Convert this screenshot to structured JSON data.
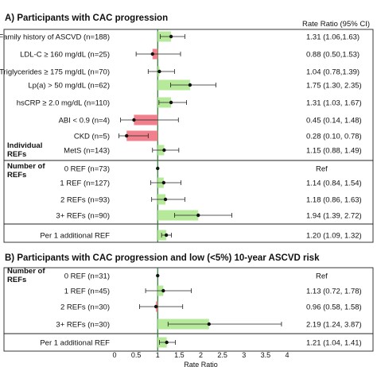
{
  "panel_a_title": "A) Participants with CAC progression",
  "panel_b_title": "B) Participants with CAC progression and low (<5%) 10-year ASCVD risk",
  "rate_ratio_header": "Rate Ratio (95% CI)",
  "colors": {
    "increase": "#b6ea9a",
    "decrease": "#f0808c",
    "reference_line": "#1f7a2a"
  },
  "chart_data": [
    {
      "type": "forest",
      "title": "A) Participants with CAC progression",
      "xlabel": "",
      "xlim": [
        0,
        4
      ],
      "xticks": [],
      "reference_value": 1,
      "groups": [
        {
          "label": "Individual REFs",
          "rows": [
            {
              "label": "Family history of ASCVD (n=188)",
              "rr": 1.31,
              "lo": 1.06,
              "hi": 1.63,
              "text": "1.31 (1.06,1.63)"
            },
            {
              "label": "LDL-C ≥ 160 mg/dL (n=25)",
              "rr": 0.88,
              "lo": 0.5,
              "hi": 1.53,
              "text": "0.88 (0.50,1.53)"
            },
            {
              "label": "Triglycerides ≥ 175 mg/dL (n=70)",
              "rr": 1.04,
              "lo": 0.78,
              "hi": 1.39,
              "text": "1.04 (0.78,1.39)"
            },
            {
              "label": "Lp(a) > 50 mg/dL (n=62)",
              "rr": 1.75,
              "lo": 1.3,
              "hi": 2.35,
              "text": "1.75 (1.30, 2.35)"
            },
            {
              "label": "hsCRP ≥ 2.0 mg/dL (n=110)",
              "rr": 1.31,
              "lo": 1.03,
              "hi": 1.67,
              "text": "1.31 (1.03, 1.67)"
            },
            {
              "label": "ABI < 0.9 (n=4)",
              "rr": 0.45,
              "lo": 0.14,
              "hi": 1.48,
              "text": "0.45 (0.14, 1.48)"
            },
            {
              "label": "CKD (n=5)",
              "rr": 0.28,
              "lo": 0.1,
              "hi": 0.78,
              "text": "0.28 (0.10, 0.78)"
            },
            {
              "label": "MetS (n=143)",
              "rr": 1.15,
              "lo": 0.88,
              "hi": 1.49,
              "text": "1.15 (0.88, 1.49)"
            }
          ]
        },
        {
          "label": "Number of REFs",
          "rows": [
            {
              "label": "0 REF (n=73)",
              "rr": 1.0,
              "lo": null,
              "hi": null,
              "text": "Ref"
            },
            {
              "label": "1 REF (n=127)",
              "rr": 1.14,
              "lo": 0.84,
              "hi": 1.54,
              "text": "1.14 (0.84, 1.54)"
            },
            {
              "label": "2 REFs (n=93)",
              "rr": 1.18,
              "lo": 0.86,
              "hi": 1.63,
              "text": "1.18 (0.86, 1.63)"
            },
            {
              "label": "3+ REFs (n=90)",
              "rr": 1.94,
              "lo": 1.39,
              "hi": 2.72,
              "text": "1.94 (1.39, 2.72)"
            }
          ]
        },
        {
          "label": "",
          "rows": [
            {
              "label": "Per 1 additional REF",
              "rr": 1.2,
              "lo": 1.09,
              "hi": 1.32,
              "text": "1.20 (1.09, 1.32)"
            }
          ]
        }
      ]
    },
    {
      "type": "forest",
      "title": "B) Participants with CAC progression and low (<5%) 10-year ASCVD risk",
      "xlabel": "Rate Ratio",
      "xlim": [
        0,
        4
      ],
      "xticks": [
        0,
        0.5,
        1,
        1.5,
        2,
        2.5,
        3,
        3.5,
        4
      ],
      "reference_value": 1,
      "groups": [
        {
          "label": "Number of REFs",
          "rows": [
            {
              "label": "0 REF (n=31)",
              "rr": 1.0,
              "lo": null,
              "hi": null,
              "text": "Ref"
            },
            {
              "label": "1 REF (n=45)",
              "rr": 1.13,
              "lo": 0.72,
              "hi": 1.78,
              "text": "1.13 (0.72, 1.78)"
            },
            {
              "label": "2 REFs (n=30)",
              "rr": 0.96,
              "lo": 0.58,
              "hi": 1.58,
              "text": "0.96 (0.58, 1.58)"
            },
            {
              "label": "3+ REFs (n=30)",
              "rr": 2.19,
              "lo": 1.24,
              "hi": 3.87,
              "text": "2.19 (1.24, 3.87)"
            }
          ]
        },
        {
          "label": "",
          "rows": [
            {
              "label": "Per 1 additional REF",
              "rr": 1.21,
              "lo": 1.04,
              "hi": 1.41,
              "text": "1.21 (1.04, 1.41)"
            }
          ]
        }
      ]
    }
  ]
}
